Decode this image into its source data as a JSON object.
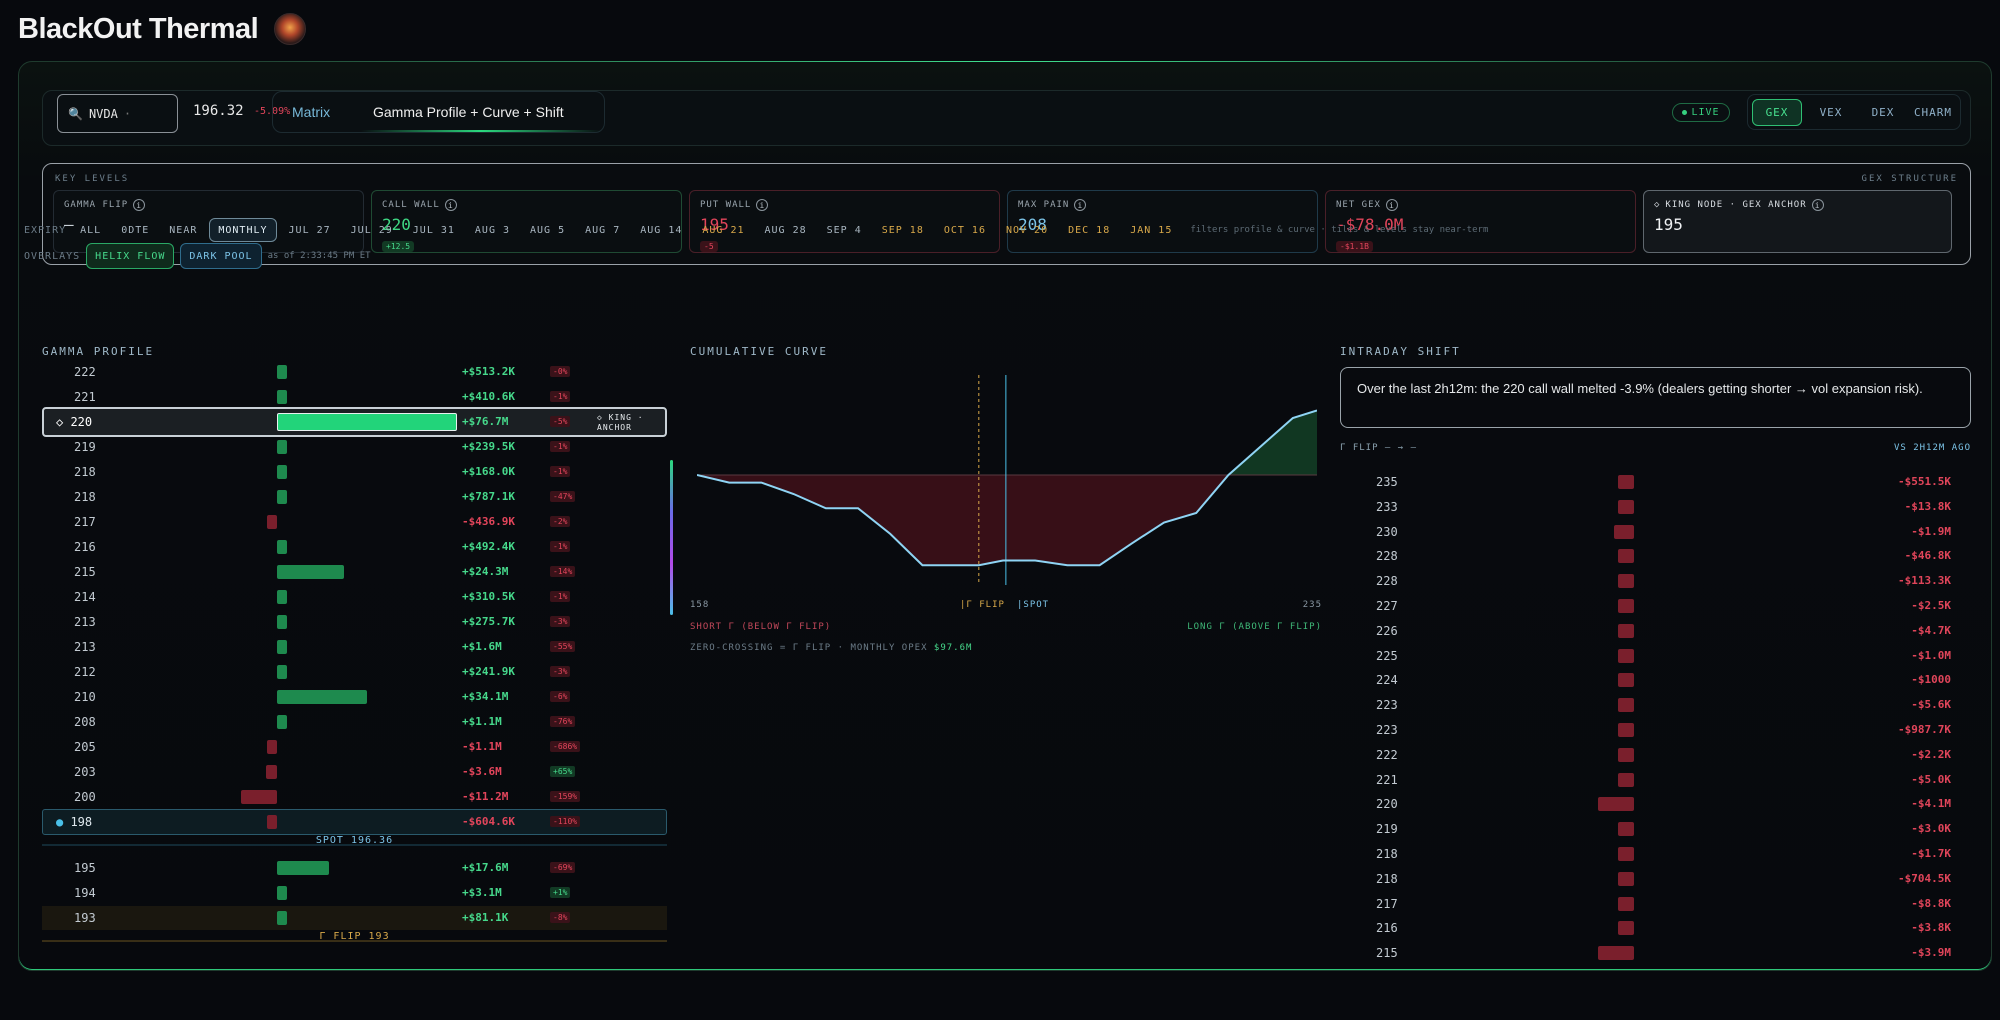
{
  "app": {
    "title": "BlackOut Thermal"
  },
  "ticker": {
    "symbol": "NVDA",
    "price": "196.32",
    "change": "-5.09%"
  },
  "view_tabs": {
    "matrix": "Matrix",
    "gamma": "Gamma Profile + Curve + Shift"
  },
  "status": {
    "live": "LIVE"
  },
  "metric_tabs": [
    "GEX",
    "VEX",
    "DEX",
    "CHARM"
  ],
  "key_levels": {
    "title": "KEY LEVELS",
    "structure": "GEX STRUCTURE",
    "cards": [
      {
        "label": "GAMMA FLIP",
        "value": "—",
        "chip": ""
      },
      {
        "label": "CALL WALL",
        "value": "220",
        "chip": "+12.5"
      },
      {
        "label": "PUT WALL",
        "value": "195",
        "chip": "-5"
      },
      {
        "label": "MAX PAIN",
        "value": "208",
        "chip": ""
      },
      {
        "label": "NET GEX",
        "value": "-$78.0M",
        "chip": "-$1.1B"
      },
      {
        "label": "KING NODE · GEX ANCHOR",
        "value": "195",
        "chip": ""
      }
    ]
  },
  "expiry": {
    "label": "EXPIRY",
    "options": [
      "ALL",
      "0DTE",
      "NEAR",
      "MONTHLY",
      "JUL 27",
      "JUL 29",
      "JUL 31",
      "AUG 3",
      "AUG 5",
      "AUG 7",
      "AUG 14",
      "AUG 21",
      "AUG 28",
      "SEP 4",
      "SEP 18",
      "OCT 16",
      "NOV 20",
      "DEC 18",
      "JAN 15"
    ],
    "selected": "MONTHLY",
    "highlighted": [
      "AUG 21",
      "SEP 18",
      "OCT 16",
      "NOV 20",
      "DEC 18",
      "JAN 15"
    ],
    "note": "filters profile & curve · tiles & levels stay near-term"
  },
  "overlays": {
    "label": "OVERLAYS",
    "helix": "HELIX FLOW",
    "darkpool": "DARK POOL",
    "as_of": "as of 2:33:45 PM ET"
  },
  "gamma_profile": {
    "title": "GAMMA PROFILE",
    "king_label": "◇ KING · ANCHOR",
    "spot_label": "SPOT 196.36",
    "flip_label": "Γ FLIP 193",
    "rows": [
      {
        "strike": "222",
        "value": "+$513.2K",
        "pct": "-0%",
        "n": 0.02
      },
      {
        "strike": "221",
        "value": "+$410.6K",
        "pct": "-1%",
        "n": 0.02
      },
      {
        "strike": "220",
        "value": "+$76.7M",
        "pct": "-5%",
        "n": 1.0,
        "king": true
      },
      {
        "strike": "219",
        "value": "+$239.5K",
        "pct": "-1%",
        "n": 0.02
      },
      {
        "strike": "218",
        "value": "+$168.0K",
        "pct": "-1%",
        "n": 0.02
      },
      {
        "strike": "218",
        "value": "+$787.1K",
        "pct": "-47%",
        "n": 0.02
      },
      {
        "strike": "217",
        "value": "-$436.9K",
        "pct": "-2%",
        "n": -0.02
      },
      {
        "strike": "216",
        "value": "+$492.4K",
        "pct": "-1%",
        "n": 0.02
      },
      {
        "strike": "215",
        "value": "+$24.3M",
        "pct": "-14%",
        "n": 0.37
      },
      {
        "strike": "214",
        "value": "+$310.5K",
        "pct": "-1%",
        "n": 0.02
      },
      {
        "strike": "213",
        "value": "+$275.7K",
        "pct": "-3%",
        "n": 0.02
      },
      {
        "strike": "213",
        "value": "+$1.6M",
        "pct": "-55%",
        "n": 0.03
      },
      {
        "strike": "212",
        "value": "+$241.9K",
        "pct": "-3%",
        "n": 0.02
      },
      {
        "strike": "210",
        "value": "+$34.1M",
        "pct": "-6%",
        "n": 0.5
      },
      {
        "strike": "208",
        "value": "+$1.1M",
        "pct": "-76%",
        "n": 0.03
      },
      {
        "strike": "205",
        "value": "-$1.1M",
        "pct": "-686%",
        "n": -0.03
      },
      {
        "strike": "203",
        "value": "-$3.6M",
        "pct": "+65%",
        "n": -0.06
      },
      {
        "strike": "200",
        "value": "-$11.2M",
        "pct": "-159%",
        "n": -0.2
      },
      {
        "strike": "198",
        "value": "-$604.6K",
        "pct": "-110%",
        "n": -0.03,
        "spot": true
      },
      {
        "strike": "195",
        "value": "+$17.6M",
        "pct": "-69%",
        "n": 0.29
      },
      {
        "strike": "194",
        "value": "+$3.1M",
        "pct": "+1%",
        "n": 0.05
      },
      {
        "strike": "193",
        "value": "+$81.1K",
        "pct": "-8%",
        "n": 0.02,
        "flip": true
      }
    ]
  },
  "cumulative_curve": {
    "title": "CUMULATIVE CURVE",
    "x_min": "158",
    "x_max": "235",
    "flip_label": "|Γ FLIP",
    "spot_label": "|SPOT",
    "short_label": "SHORT Γ (BELOW Γ FLIP)",
    "long_label": "LONG Γ (ABOVE Γ FLIP)",
    "footer_prefix": "ZERO-CROSSING = Γ FLIP · MONTHLY OPEX",
    "footer_value": "$97.6M"
  },
  "chart_data": {
    "type": "area",
    "title": "CUMULATIVE CURVE",
    "x": [
      158,
      162,
      166,
      170,
      174,
      178,
      182,
      186,
      190,
      193,
      196,
      200,
      204,
      208,
      212,
      216,
      220,
      224,
      228,
      232,
      235
    ],
    "values": [
      0,
      -0.08,
      -0.08,
      -0.2,
      -0.35,
      -0.35,
      -0.62,
      -0.95,
      -0.95,
      -0.95,
      -0.9,
      -0.9,
      -0.95,
      -0.95,
      -0.72,
      -0.5,
      -0.4,
      0.0,
      0.3,
      0.6,
      0.68
    ],
    "xlim": [
      158,
      235
    ]
  },
  "intraday_shift": {
    "title": "INTRADAY SHIFT",
    "summary": "Over the last 2h12m: the 220 call wall melted -3.9% (dealers getting shorter → vol expansion risk).",
    "sub_left": "Γ FLIP — → —",
    "sub_right": "VS 2H12M AGO",
    "rows": [
      {
        "strike": "235",
        "value": "-$551.5K",
        "n": 0.2
      },
      {
        "strike": "233",
        "value": "-$13.8K",
        "n": 0.2
      },
      {
        "strike": "230",
        "value": "-$1.9M",
        "n": 0.25
      },
      {
        "strike": "228",
        "value": "-$46.8K",
        "n": 0.2
      },
      {
        "strike": "228",
        "value": "-$113.3K",
        "n": 0.2
      },
      {
        "strike": "227",
        "value": "-$2.5K",
        "n": 0.2
      },
      {
        "strike": "226",
        "value": "-$4.7K",
        "n": 0.2
      },
      {
        "strike": "225",
        "value": "-$1.0M",
        "n": 0.2
      },
      {
        "strike": "224",
        "value": "-$1000",
        "n": 0.2
      },
      {
        "strike": "223",
        "value": "-$5.6K",
        "n": 0.2
      },
      {
        "strike": "223",
        "value": "-$987.7K",
        "n": 0.2
      },
      {
        "strike": "222",
        "value": "-$2.2K",
        "n": 0.2
      },
      {
        "strike": "221",
        "value": "-$5.0K",
        "n": 0.2
      },
      {
        "strike": "220",
        "value": "-$4.1M",
        "n": 0.45
      },
      {
        "strike": "219",
        "value": "-$3.0K",
        "n": 0.2
      },
      {
        "strike": "218",
        "value": "-$1.7K",
        "n": 0.2
      },
      {
        "strike": "218",
        "value": "-$704.5K",
        "n": 0.2
      },
      {
        "strike": "217",
        "value": "-$8.8K",
        "n": 0.2
      },
      {
        "strike": "216",
        "value": "-$3.8K",
        "n": 0.2
      },
      {
        "strike": "215",
        "value": "-$3.9M",
        "n": 0.45
      }
    ]
  },
  "colors": {
    "green": "#1fb864",
    "red": "#8a2030",
    "accent": "#36d07f",
    "gold": "#d8a84a"
  }
}
